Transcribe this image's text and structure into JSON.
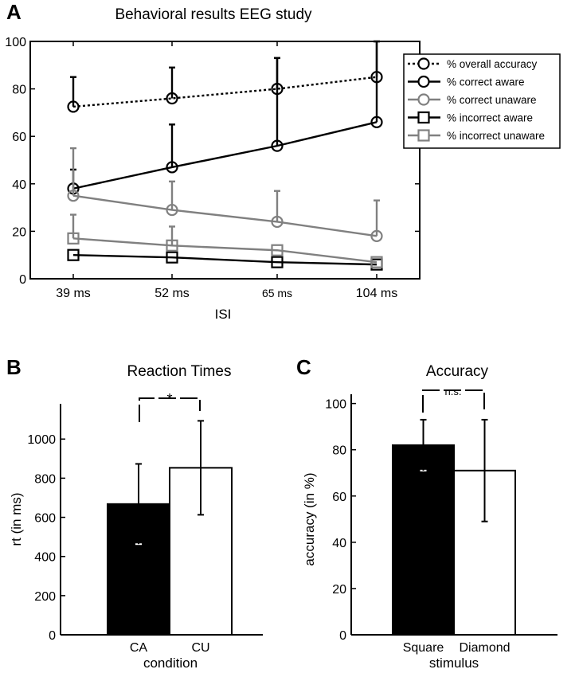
{
  "panel_letters": [
    "A",
    "B",
    "C"
  ],
  "chart_data": [
    {
      "type": "line",
      "title": "Behavioral results EEG study",
      "xlabel": "ISI",
      "ylabel": "",
      "categories": [
        "39 ms",
        "52 ms",
        "65 ms",
        "104 ms"
      ],
      "ylim": [
        0,
        100
      ],
      "yticks": [
        0,
        20,
        40,
        60,
        80,
        100
      ],
      "grid": false,
      "legend_position": "top-right",
      "series": [
        {
          "name": "% overall accuracy",
          "values": [
            72.5,
            76,
            80,
            85
          ],
          "errors": [
            12.5,
            13,
            13,
            15
          ],
          "marker": "circle",
          "color": "#000000",
          "dash": "dotted"
        },
        {
          "name": "% correct aware",
          "values": [
            38,
            47,
            56,
            66
          ],
          "errors": [
            8,
            18,
            37,
            34
          ],
          "marker": "circle",
          "color": "#000000",
          "dash": "solid"
        },
        {
          "name": "% correct unaware",
          "values": [
            35,
            29,
            24,
            18
          ],
          "errors": [
            20,
            12,
            13,
            15
          ],
          "marker": "circle",
          "color": "#808080",
          "dash": "solid"
        },
        {
          "name": "% incorrect aware",
          "values": [
            10,
            9,
            7,
            6
          ],
          "errors": [
            0,
            0,
            0,
            0
          ],
          "marker": "square",
          "color": "#000000",
          "dash": "solid"
        },
        {
          "name": "% incorrect unaware",
          "values": [
            17,
            14,
            12,
            7
          ],
          "errors": [
            10,
            8,
            0,
            0
          ],
          "marker": "square",
          "color": "#808080",
          "dash": "solid"
        }
      ]
    },
    {
      "type": "bar",
      "title": "Reaction Times",
      "xlabel": "condition",
      "ylabel": "rt (in ms)",
      "categories": [
        "CA",
        "CU"
      ],
      "values": [
        668,
        853
      ],
      "errors": [
        205,
        240
      ],
      "colors": [
        "#000000",
        "#ffffff"
      ],
      "ylim": [
        0,
        1180
      ],
      "yticks": [
        0,
        200,
        400,
        600,
        800,
        1000
      ],
      "significance": "*"
    },
    {
      "type": "bar",
      "title": "Accuracy",
      "xlabel": "stimulus",
      "ylabel": "accuracy (in %)",
      "categories": [
        "Square",
        "Diamond"
      ],
      "values": [
        82,
        71
      ],
      "errors": [
        11,
        22
      ],
      "colors": [
        "#000000",
        "#ffffff"
      ],
      "ylim": [
        0,
        104
      ],
      "yticks": [
        0,
        20,
        40,
        60,
        80,
        100
      ],
      "significance": "n.s."
    }
  ]
}
